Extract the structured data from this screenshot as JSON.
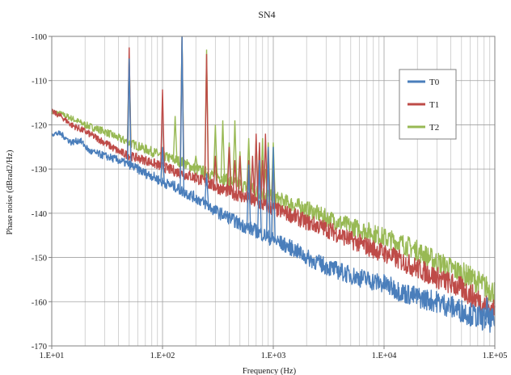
{
  "chart_data": {
    "type": "line",
    "title": "SN4",
    "xlabel": "Frequency (Hz)",
    "ylabel": "Phase noise (dBrad2/Hz)",
    "xscale": "log",
    "xlim": [
      10,
      100000
    ],
    "ylim": [
      -170,
      -100
    ],
    "x_ticks": [
      10,
      100,
      1000,
      10000,
      100000
    ],
    "x_tick_labels": [
      "1.E+01",
      "1.E+02",
      "1.E+03",
      "1.E+04",
      "1.E+05"
    ],
    "y_ticks": [
      -100,
      -110,
      -120,
      -130,
      -140,
      -150,
      -160,
      -170
    ],
    "y_tick_labels": [
      "-100",
      "-110",
      "-120",
      "-130",
      "-140",
      "-150",
      "-160",
      "-170"
    ],
    "grid": "on (log minor vertical gridlines, horizontal major gridlines)",
    "legend_position": "top-right",
    "series": [
      {
        "name": "T0",
        "color": "#4a7ebb",
        "points": [
          [
            10,
            -122
          ],
          [
            12,
            -122
          ],
          [
            15,
            -124
          ],
          [
            18,
            -123.5
          ],
          [
            22,
            -126
          ],
          [
            30,
            -127
          ],
          [
            40,
            -128
          ],
          [
            50,
            -129
          ],
          [
            60,
            -130
          ],
          [
            70,
            -131
          ],
          [
            80,
            -131.5
          ],
          [
            100,
            -133
          ],
          [
            130,
            -134
          ],
          [
            150,
            -135
          ],
          [
            200,
            -136.5
          ],
          [
            250,
            -138
          ],
          [
            300,
            -139.5
          ],
          [
            400,
            -141
          ],
          [
            500,
            -142.5
          ],
          [
            700,
            -144
          ],
          [
            1000,
            -146
          ],
          [
            1500,
            -148
          ],
          [
            2000,
            -150
          ],
          [
            3000,
            -152
          ],
          [
            5000,
            -154
          ],
          [
            7000,
            -155
          ],
          [
            10000,
            -156
          ],
          [
            15000,
            -158
          ],
          [
            20000,
            -159
          ],
          [
            30000,
            -160
          ],
          [
            50000,
            -162
          ],
          [
            70000,
            -163.5
          ],
          [
            100000,
            -164.5
          ]
        ],
        "spikes": [
          [
            50,
            -105
          ],
          [
            100,
            -125
          ],
          [
            150,
            -100
          ],
          [
            250,
            -131
          ],
          [
            600,
            -129
          ],
          [
            750,
            -128
          ],
          [
            900,
            -125
          ],
          [
            1000,
            -125
          ],
          [
            85000,
            -159
          ]
        ]
      },
      {
        "name": "T1",
        "color": "#be4b48",
        "points": [
          [
            10,
            -117
          ],
          [
            12,
            -118
          ],
          [
            15,
            -120
          ],
          [
            20,
            -121.5
          ],
          [
            30,
            -124
          ],
          [
            40,
            -126
          ],
          [
            50,
            -127
          ],
          [
            70,
            -128
          ],
          [
            100,
            -129.5
          ],
          [
            130,
            -130.5
          ],
          [
            150,
            -131
          ],
          [
            200,
            -132
          ],
          [
            300,
            -134
          ],
          [
            500,
            -136
          ],
          [
            700,
            -137.5
          ],
          [
            1000,
            -139
          ],
          [
            1500,
            -140.5
          ],
          [
            2000,
            -142
          ],
          [
            3000,
            -143.5
          ],
          [
            5000,
            -146
          ],
          [
            7000,
            -147.5
          ],
          [
            10000,
            -149
          ],
          [
            15000,
            -151
          ],
          [
            20000,
            -152.5
          ],
          [
            30000,
            -154.5
          ],
          [
            50000,
            -157
          ],
          [
            70000,
            -159.5
          ],
          [
            100000,
            -162.5
          ]
        ],
        "spikes": [
          [
            50,
            -102.5
          ],
          [
            100,
            -112
          ],
          [
            150,
            -100
          ],
          [
            200,
            -131
          ],
          [
            250,
            -104
          ],
          [
            300,
            -127
          ],
          [
            400,
            -125
          ],
          [
            450,
            -128
          ],
          [
            500,
            -127
          ],
          [
            600,
            -128
          ],
          [
            650,
            -127
          ],
          [
            700,
            -122
          ],
          [
            750,
            -124
          ],
          [
            800,
            -128
          ],
          [
            850,
            -122
          ],
          [
            900,
            -125
          ],
          [
            1000,
            -128
          ]
        ]
      },
      {
        "name": "T2",
        "color": "#98b954",
        "points": [
          [
            10,
            -117
          ],
          [
            12,
            -117.5
          ],
          [
            15,
            -118.5
          ],
          [
            20,
            -120
          ],
          [
            30,
            -121.5
          ],
          [
            40,
            -123
          ],
          [
            50,
            -124
          ],
          [
            70,
            -125.5
          ],
          [
            100,
            -127
          ],
          [
            150,
            -128.5
          ],
          [
            200,
            -130
          ],
          [
            300,
            -131.5
          ],
          [
            500,
            -133.5
          ],
          [
            700,
            -135
          ],
          [
            1000,
            -136.5
          ],
          [
            1500,
            -138
          ],
          [
            2000,
            -139
          ],
          [
            3000,
            -141
          ],
          [
            5000,
            -143
          ],
          [
            7000,
            -144
          ],
          [
            10000,
            -145.5
          ],
          [
            15000,
            -147
          ],
          [
            20000,
            -148.5
          ],
          [
            30000,
            -151
          ],
          [
            50000,
            -153.5
          ],
          [
            70000,
            -155.5
          ],
          [
            100000,
            -158
          ]
        ],
        "spikes": [
          [
            50,
            -104
          ],
          [
            100,
            -125
          ],
          [
            130,
            -118
          ],
          [
            150,
            -100
          ],
          [
            200,
            -127
          ],
          [
            250,
            -103
          ],
          [
            300,
            -120
          ],
          [
            350,
            -119
          ],
          [
            400,
            -124
          ],
          [
            450,
            -119
          ],
          [
            500,
            -126
          ],
          [
            600,
            -123
          ],
          [
            700,
            -123
          ],
          [
            750,
            -125
          ],
          [
            800,
            -123
          ],
          [
            850,
            -130
          ],
          [
            900,
            -124
          ],
          [
            1000,
            -124
          ]
        ]
      }
    ]
  }
}
